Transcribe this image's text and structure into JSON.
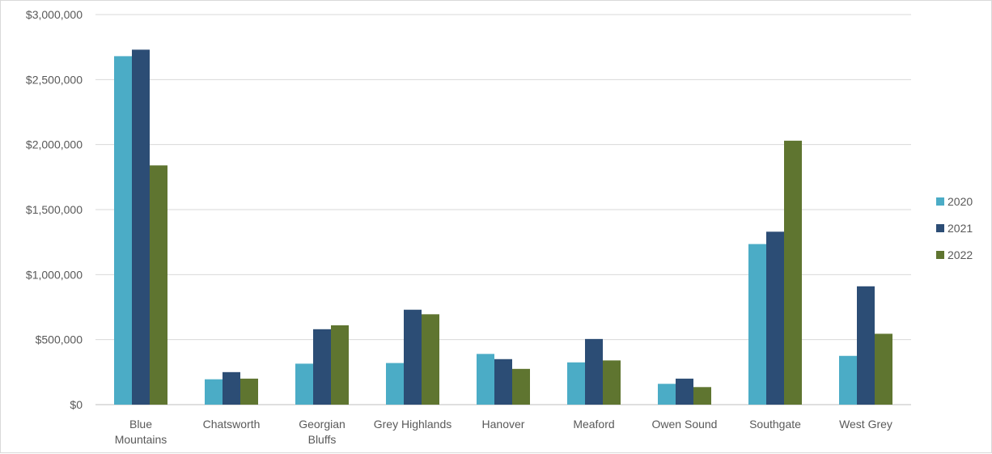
{
  "chart_data": {
    "type": "bar",
    "title": "",
    "xlabel": "",
    "ylabel": "",
    "ylim": [
      0,
      3000000
    ],
    "y_ticks": [
      0,
      500000,
      1000000,
      1500000,
      2000000,
      2500000,
      3000000
    ],
    "y_tick_labels": [
      "$0",
      "$500,000",
      "$1,000,000",
      "$1,500,000",
      "$2,000,000",
      "$2,500,000",
      "$3,000,000"
    ],
    "grid": true,
    "legend_position": "right",
    "categories": [
      [
        "Blue",
        "Mountains"
      ],
      [
        "Chatsworth"
      ],
      [
        "Georgian",
        "Bluffs"
      ],
      [
        "Grey Highlands"
      ],
      [
        "Hanover"
      ],
      [
        "Meaford"
      ],
      [
        "Owen Sound"
      ],
      [
        "Southgate"
      ],
      [
        "West Grey"
      ]
    ],
    "series": [
      {
        "name": "2020",
        "color": "#4bacc6",
        "values": [
          2680000,
          195000,
          315000,
          320000,
          390000,
          325000,
          160000,
          1235000,
          375000
        ]
      },
      {
        "name": "2021",
        "color": "#2c4d75",
        "values": [
          2730000,
          250000,
          580000,
          730000,
          350000,
          505000,
          200000,
          1330000,
          910000
        ]
      },
      {
        "name": "2022",
        "color": "#5f7530",
        "values": [
          1840000,
          200000,
          610000,
          695000,
          275000,
          340000,
          135000,
          2030000,
          545000
        ]
      }
    ]
  }
}
